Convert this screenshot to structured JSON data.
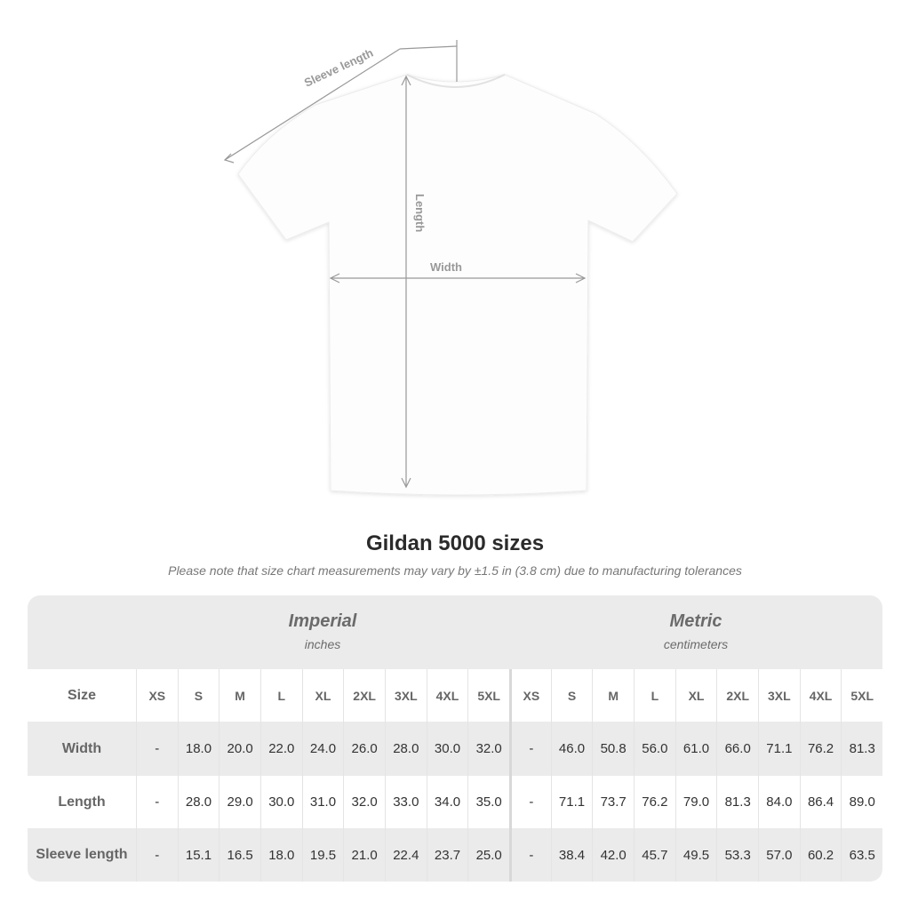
{
  "diagram": {
    "sleeve_label": "Sleeve length",
    "length_label": "Length",
    "width_label": "Width"
  },
  "title": "Gildan 5000 sizes",
  "note": "Please note that size chart measurements may vary by ±1.5 in (3.8 cm) due to manufacturing tolerances",
  "imperial": {
    "label": "Imperial",
    "unit": "inches"
  },
  "metric": {
    "label": "Metric",
    "unit": "centimeters"
  },
  "size_label": "Size",
  "sizes": [
    "XS",
    "S",
    "M",
    "L",
    "XL",
    "2XL",
    "3XL",
    "4XL",
    "5XL"
  ],
  "rows": [
    {
      "label": "Width",
      "imperial": [
        "-",
        "18.0",
        "20.0",
        "22.0",
        "24.0",
        "26.0",
        "28.0",
        "30.0",
        "32.0"
      ],
      "metric": [
        "-",
        "46.0",
        "50.8",
        "56.0",
        "61.0",
        "66.0",
        "71.1",
        "76.2",
        "81.3"
      ]
    },
    {
      "label": "Length",
      "imperial": [
        "-",
        "28.0",
        "29.0",
        "30.0",
        "31.0",
        "32.0",
        "33.0",
        "34.0",
        "35.0"
      ],
      "metric": [
        "-",
        "71.1",
        "73.7",
        "76.2",
        "79.0",
        "81.3",
        "84.0",
        "86.4",
        "89.0"
      ]
    },
    {
      "label": "Sleeve length",
      "imperial": [
        "-",
        "15.1",
        "16.5",
        "18.0",
        "19.5",
        "21.0",
        "22.4",
        "23.7",
        "25.0"
      ],
      "metric": [
        "-",
        "38.4",
        "42.0",
        "45.7",
        "49.5",
        "53.3",
        "57.0",
        "60.2",
        "63.5"
      ]
    }
  ]
}
